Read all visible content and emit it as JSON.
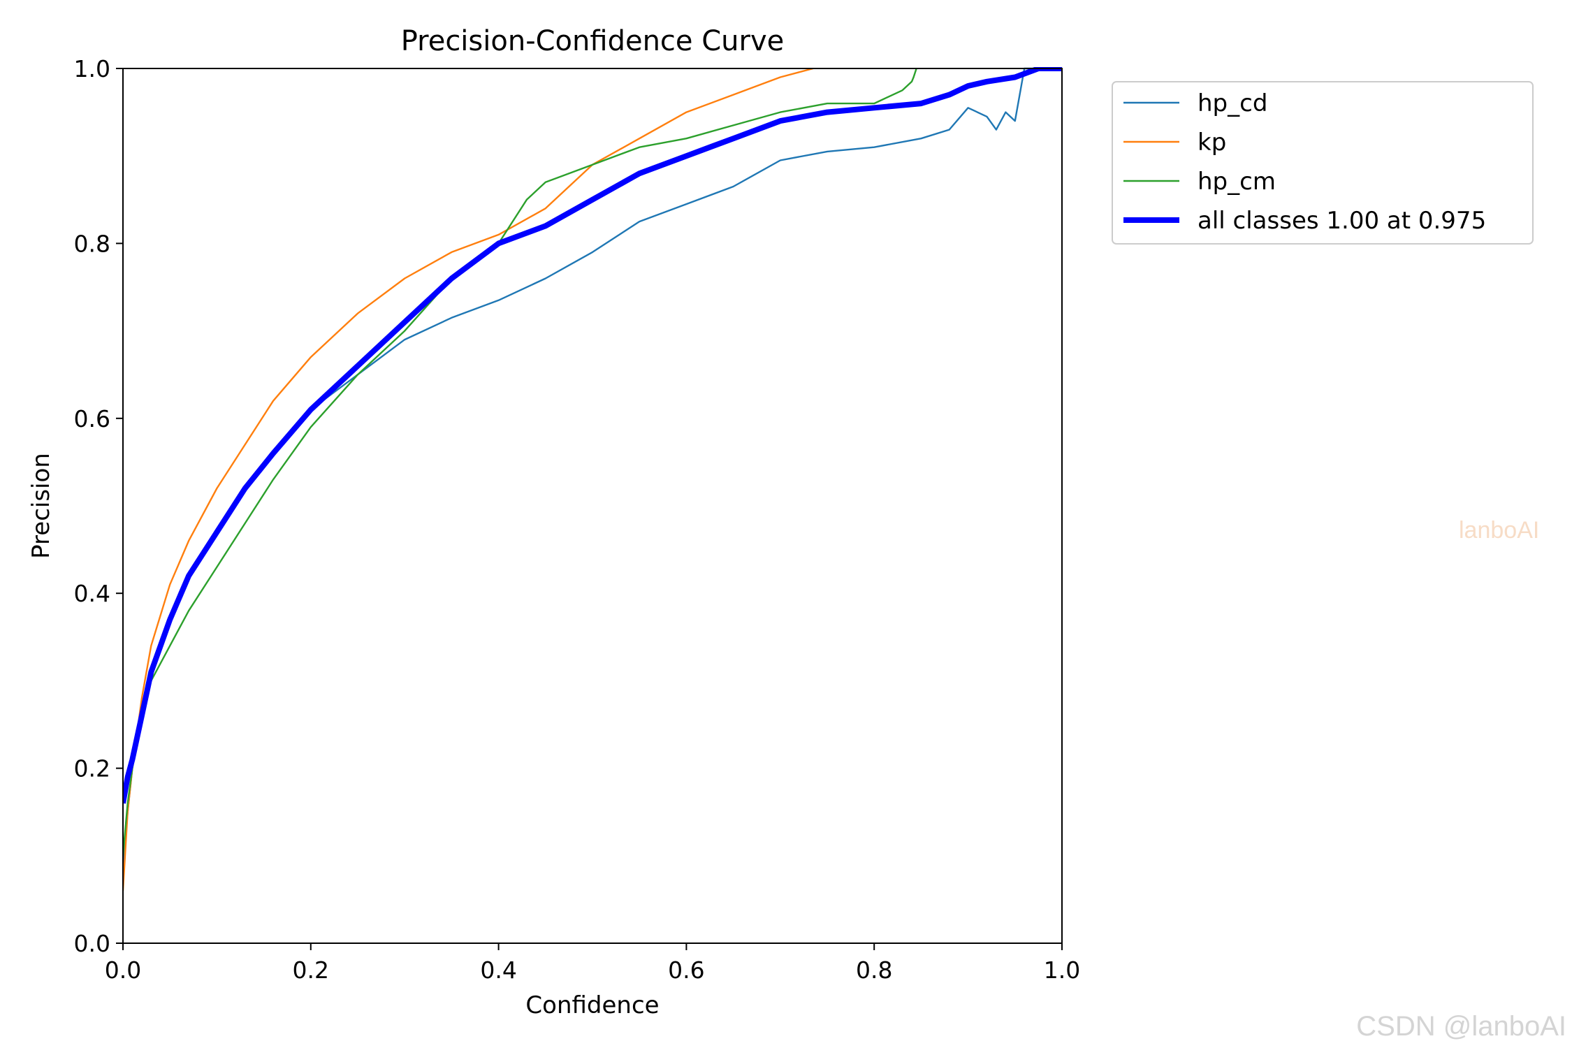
{
  "chart_data": {
    "type": "line",
    "title": "Precision-Confidence Curve",
    "xlabel": "Confidence",
    "ylabel": "Precision",
    "xlim": [
      0,
      1
    ],
    "ylim": [
      0,
      1
    ],
    "xticks": [
      "0.0",
      "0.2",
      "0.4",
      "0.6",
      "0.8",
      "1.0"
    ],
    "yticks": [
      "0.0",
      "0.2",
      "0.4",
      "0.6",
      "0.8",
      "1.0"
    ],
    "grid": false,
    "legend_position": "outside top-right",
    "series": [
      {
        "name": "hp_cd",
        "color": "#1f77b4",
        "width": "thin",
        "x": [
          0.0,
          0.005,
          0.01,
          0.02,
          0.03,
          0.05,
          0.07,
          0.1,
          0.13,
          0.16,
          0.2,
          0.25,
          0.3,
          0.35,
          0.4,
          0.45,
          0.5,
          0.55,
          0.6,
          0.65,
          0.7,
          0.75,
          0.8,
          0.85,
          0.88,
          0.9,
          0.92,
          0.93,
          0.94,
          0.95,
          0.96,
          1.0
        ],
        "y": [
          0.08,
          0.15,
          0.2,
          0.26,
          0.31,
          0.37,
          0.42,
          0.47,
          0.52,
          0.56,
          0.61,
          0.65,
          0.69,
          0.715,
          0.735,
          0.76,
          0.79,
          0.825,
          0.845,
          0.865,
          0.895,
          0.905,
          0.91,
          0.92,
          0.93,
          0.955,
          0.945,
          0.93,
          0.95,
          0.94,
          1.0,
          1.0
        ]
      },
      {
        "name": "kp",
        "color": "#ff7f0e",
        "width": "thin",
        "x": [
          0.0,
          0.005,
          0.01,
          0.02,
          0.03,
          0.05,
          0.07,
          0.1,
          0.13,
          0.16,
          0.2,
          0.25,
          0.3,
          0.35,
          0.4,
          0.45,
          0.5,
          0.55,
          0.6,
          0.65,
          0.7,
          0.735
        ],
        "y": [
          0.06,
          0.15,
          0.2,
          0.28,
          0.34,
          0.41,
          0.46,
          0.52,
          0.57,
          0.62,
          0.67,
          0.72,
          0.76,
          0.79,
          0.81,
          0.84,
          0.89,
          0.92,
          0.95,
          0.97,
          0.99,
          1.0
        ]
      },
      {
        "name": "hp_cm",
        "color": "#2ca02c",
        "width": "thin",
        "x": [
          0.0,
          0.005,
          0.01,
          0.02,
          0.03,
          0.05,
          0.07,
          0.1,
          0.13,
          0.16,
          0.2,
          0.25,
          0.3,
          0.35,
          0.4,
          0.43,
          0.45,
          0.5,
          0.55,
          0.6,
          0.65,
          0.7,
          0.75,
          0.8,
          0.83,
          0.84,
          0.842,
          0.845
        ],
        "y": [
          0.1,
          0.16,
          0.2,
          0.26,
          0.3,
          0.34,
          0.38,
          0.43,
          0.48,
          0.53,
          0.59,
          0.65,
          0.7,
          0.76,
          0.8,
          0.85,
          0.87,
          0.89,
          0.91,
          0.92,
          0.935,
          0.95,
          0.96,
          0.96,
          0.975,
          0.985,
          0.99,
          1.0
        ]
      },
      {
        "name": "all classes 1.00 at 0.975",
        "color": "#0000ff",
        "width": "thick",
        "x": [
          0.0,
          0.005,
          0.01,
          0.02,
          0.03,
          0.05,
          0.07,
          0.1,
          0.13,
          0.16,
          0.2,
          0.25,
          0.3,
          0.35,
          0.4,
          0.45,
          0.5,
          0.55,
          0.6,
          0.65,
          0.7,
          0.75,
          0.8,
          0.85,
          0.88,
          0.9,
          0.92,
          0.95,
          0.975,
          1.0
        ],
        "y": [
          0.16,
          0.19,
          0.21,
          0.26,
          0.31,
          0.37,
          0.42,
          0.47,
          0.52,
          0.56,
          0.61,
          0.66,
          0.71,
          0.76,
          0.8,
          0.82,
          0.85,
          0.88,
          0.9,
          0.92,
          0.94,
          0.95,
          0.955,
          0.96,
          0.97,
          0.98,
          0.985,
          0.99,
          1.0,
          1.0
        ]
      }
    ]
  },
  "watermarks": {
    "mid": "lanboAI",
    "bottom": "CSDN @lanboAI"
  }
}
